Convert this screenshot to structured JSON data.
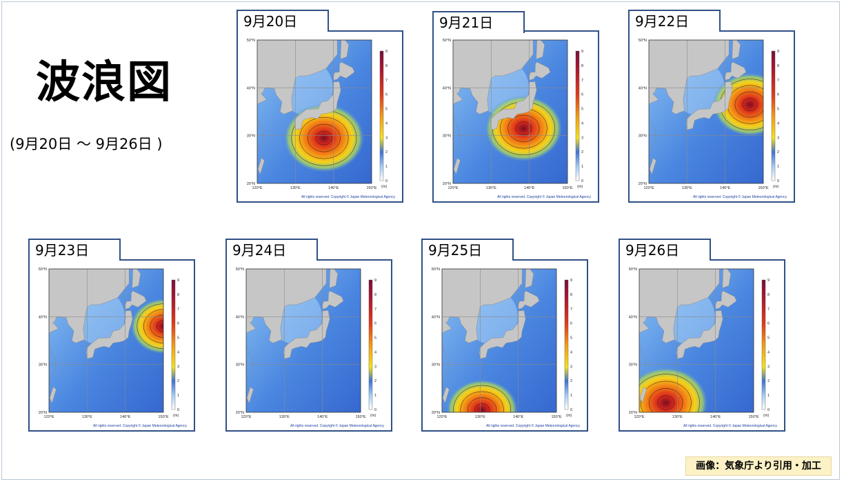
{
  "title": "波浪図",
  "subtitle": "(9月20日 ～ 9月26日 )",
  "credit": "画像：気象庁より引用・加工",
  "copyright_text": "All rights reserved. Copyright © Japan Meteorological Agency",
  "lat_labels": [
    "50°N",
    "40°N",
    "30°N",
    "20°N"
  ],
  "lon_labels": [
    "120°E",
    "130°E",
    "140°E",
    "150°E"
  ],
  "scale_ticks": [
    "9",
    "8",
    "7",
    "6",
    "5",
    "4",
    "3",
    "2",
    "1",
    "0"
  ],
  "scale_unit": "(m)",
  "colors": {
    "border": "#2f4f86",
    "land": "#c6c6c6",
    "sea_low": "#7fb6ee",
    "sea_mid": "#3f74d6",
    "peak_high": "#b0172e"
  },
  "panels": [
    {
      "date": "9月20日",
      "storm_lon": 137.5,
      "storm_lat": 29.5,
      "storm_intensity": 6.5
    },
    {
      "date": "9月21日",
      "storm_lon": 138.5,
      "storm_lat": 31.5,
      "storm_intensity": 6.0
    },
    {
      "date": "9月22日",
      "storm_lon": 146.5,
      "storm_lat": 36.5,
      "storm_intensity": 5.5
    },
    {
      "date": "9月23日",
      "storm_lon": 150.0,
      "storm_lat": 38.0,
      "storm_intensity": 4.0
    },
    {
      "date": "9月24日",
      "storm_lon": 0,
      "storm_lat": 0,
      "storm_intensity": 0
    },
    {
      "date": "9月25日",
      "storm_lon": 130.5,
      "storm_lat": 20.5,
      "storm_intensity": 5.0
    },
    {
      "date": "9月26日",
      "storm_lon": 127.0,
      "storm_lat": 22.0,
      "storm_intensity": 7.0
    }
  ]
}
